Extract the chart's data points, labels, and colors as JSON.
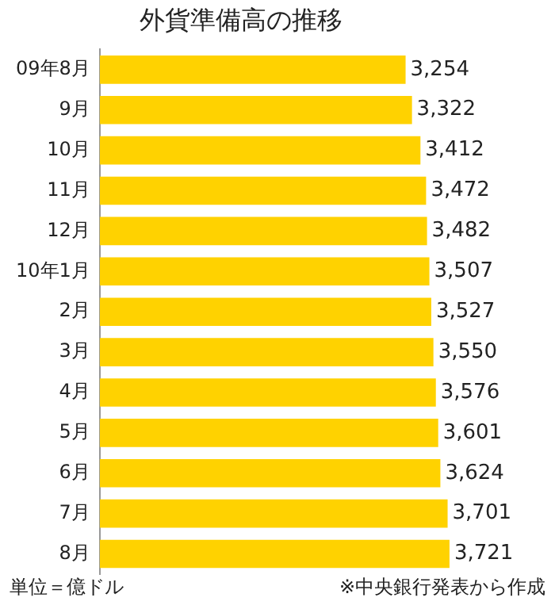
{
  "chart_data": {
    "type": "bar",
    "orientation": "horizontal",
    "title": "外貨準備高の推移",
    "categories": [
      "09年8月",
      "9月",
      "10月",
      "11月",
      "12月",
      "10年1月",
      "2月",
      "3月",
      "4月",
      "5月",
      "6月",
      "7月",
      "8月"
    ],
    "values": [
      3254,
      3322,
      3412,
      3472,
      3482,
      3507,
      3527,
      3550,
      3576,
      3601,
      3624,
      3701,
      3721
    ],
    "value_labels": [
      "3,254",
      "3,322",
      "3,412",
      "3,472",
      "3,482",
      "3,507",
      "3,527",
      "3,550",
      "3,576",
      "3,601",
      "3,624",
      "3,701",
      "3,721"
    ],
    "color": "#ffd200",
    "tick_labels": "y",
    "annotations": [
      "単位＝億ドル",
      "※中央銀行発表から作成"
    ]
  }
}
